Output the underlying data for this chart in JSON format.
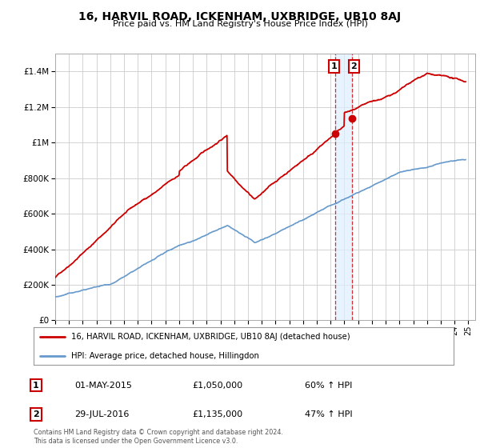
{
  "title": "16, HARVIL ROAD, ICKENHAM, UXBRIDGE, UB10 8AJ",
  "subtitle": "Price paid vs. HM Land Registry's House Price Index (HPI)",
  "xlim_start": 1995,
  "xlim_end": 2025.5,
  "ylim": [
    0,
    1500000
  ],
  "yticks": [
    0,
    200000,
    400000,
    600000,
    800000,
    1000000,
    1200000,
    1400000
  ],
  "ytick_labels": [
    "£0",
    "£200K",
    "£400K",
    "£600K",
    "£800K",
    "£1M",
    "£1.2M",
    "£1.4M"
  ],
  "sale1_date": 2015.33,
  "sale1_price": 1050000,
  "sale1_label": "1",
  "sale2_date": 2016.58,
  "sale2_price": 1135000,
  "sale2_label": "2",
  "red_line_color": "#cc0000",
  "blue_line_color": "#6699cc",
  "blue_shade_color": "#ddeeff",
  "marker_color": "#cc0000",
  "dashed_line_color": "#cc0000",
  "legend1_label": "16, HARVIL ROAD, ICKENHAM, UXBRIDGE, UB10 8AJ (detached house)",
  "legend2_label": "HPI: Average price, detached house, Hillingdon",
  "table_row1": [
    "1",
    "01-MAY-2015",
    "£1,050,000",
    "60% ↑ HPI"
  ],
  "table_row2": [
    "2",
    "29-JUL-2016",
    "£1,135,000",
    "47% ↑ HPI"
  ],
  "footer": "Contains HM Land Registry data © Crown copyright and database right 2024.\nThis data is licensed under the Open Government Licence v3.0.",
  "background_color": "#ffffff",
  "grid_color": "#cccccc"
}
